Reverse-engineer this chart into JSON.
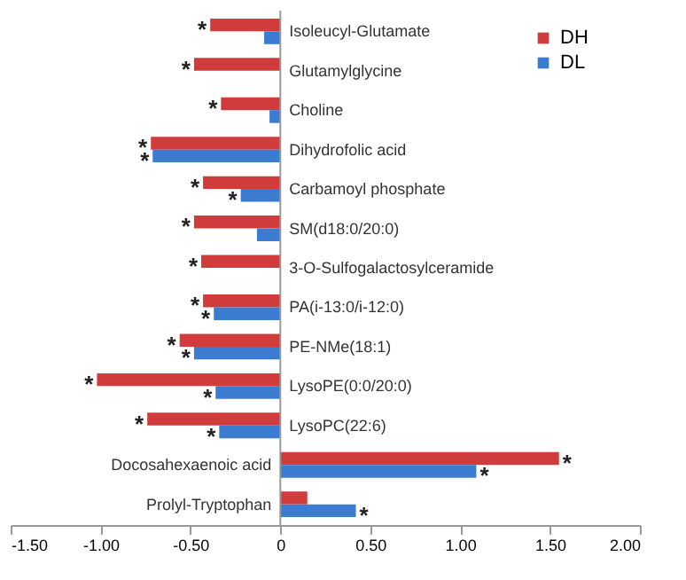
{
  "chart_data": {
    "type": "bar",
    "orientation": "horizontal",
    "categories": [
      "Isoleucyl-Glutamate",
      "Glutamylglycine",
      "Choline",
      "Dihydrofolic acid",
      "Carbamoyl phosphate",
      "SM(d18:0/20:0)",
      "3-O-Sulfogalactosylceramide",
      "PA(i-13:0/i-12:0)",
      "PE-NMe(18:1)",
      "LysoPE(0:0/20:0)",
      "LysoPC(22:6)",
      "Docosahexaenoic acid",
      "Prolyl-Tryptophan"
    ],
    "series": [
      {
        "name": "DH",
        "color": "#d03c3c",
        "values": [
          -0.39,
          -0.48,
          -0.33,
          -0.72,
          -0.43,
          -0.48,
          -0.44,
          -0.43,
          -0.56,
          -1.02,
          -0.74,
          1.55,
          0.15
        ]
      },
      {
        "name": "DL",
        "color": "#3b7bd0",
        "values": [
          -0.09,
          null,
          -0.06,
          -0.71,
          -0.22,
          -0.13,
          null,
          -0.37,
          -0.48,
          -0.36,
          -0.34,
          1.09,
          0.42
        ]
      }
    ],
    "xlim": [
      -1.5,
      2.0
    ],
    "xticks": [
      {
        "value": -1.5,
        "label": "-1.50"
      },
      {
        "value": -1.0,
        "label": "-1.00"
      },
      {
        "value": -0.5,
        "label": "-0.50"
      },
      0,
      {
        "value": 0.5,
        "label": "0.50"
      },
      {
        "value": 1.0,
        "label": "1.00"
      },
      {
        "value": 1.5,
        "label": "1.50"
      },
      {
        "value": 2.0,
        "label": "2.00"
      }
    ],
    "annotations": [
      {
        "text": "*",
        "x": -0.39,
        "y": "Isoleucyl-Glutamate"
      },
      {
        "text": "*",
        "x": -0.48,
        "y": "Glutamylglycine"
      },
      {
        "text": "*",
        "x": -0.33,
        "y": "Choline"
      },
      {
        "text": "*",
        "x": -0.72,
        "y": "Dihydrofolic acid"
      },
      {
        "text": "*",
        "x": -0.71,
        "y": "Dihydrofolic acid"
      },
      {
        "text": "*",
        "x": -0.43,
        "y": "Carbamoyl phosphate"
      },
      {
        "text": "*",
        "x": -0.22,
        "y": "Carbamoyl phosphate"
      },
      {
        "text": "*",
        "x": -0.48,
        "y": "SM(d18:0/20:0)"
      },
      {
        "text": "*",
        "x": -0.44,
        "y": "3-O-Sulfogalactosylceramide"
      },
      {
        "text": "*",
        "x": -0.43,
        "y": "PA(i-13:0/i-12:0)"
      },
      {
        "text": "*",
        "x": -0.37,
        "y": "PA(i-13:0/i-12:0)"
      },
      {
        "text": "*",
        "x": -0.56,
        "y": "PE-NMe(18:1)"
      },
      {
        "text": "*",
        "x": -0.48,
        "y": "PE-NMe(18:1)"
      },
      {
        "text": "*",
        "x": -1.02,
        "y": "LysoPE(0:0/20:0)"
      },
      {
        "text": "*",
        "x": -0.36,
        "y": "LysoPE(0:0/20:0)"
      },
      {
        "text": "*",
        "x": -0.74,
        "y": "LysoPC(22:6)"
      },
      {
        "text": "*",
        "x": -0.34,
        "y": "LysoPC(22:6)"
      },
      {
        "text": "*",
        "x": 1.55,
        "y": "Docosahexaenoic acid"
      },
      {
        "text": "*",
        "x": 1.09,
        "y": "Docosahexaenoic acid"
      },
      {
        "text": "*",
        "x": 0.42,
        "y": "Prolyl-Tryptophan"
      }
    ],
    "grid": false,
    "legend": "top right"
  }
}
